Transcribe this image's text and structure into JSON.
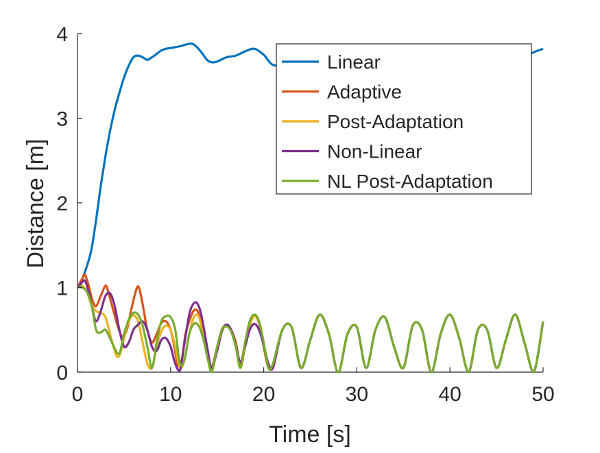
{
  "chart_data": {
    "type": "line",
    "title": "",
    "xlabel": "Time [s]",
    "ylabel": "Distance [m]",
    "xlim": [
      0,
      50
    ],
    "ylim": [
      0,
      4
    ],
    "xticks": [
      0,
      10,
      20,
      30,
      40,
      50
    ],
    "yticks": [
      0,
      1,
      2,
      3,
      4
    ],
    "x_tick_labels": [
      "0",
      "10",
      "20",
      "30",
      "40",
      "50"
    ],
    "y_tick_labels": [
      "0",
      "1",
      "2",
      "3",
      "4"
    ],
    "grid": false,
    "legend_position": "top-right",
    "series": [
      {
        "name": "Linear",
        "color": "#0072BD",
        "x": [
          0,
          0.5,
          1,
          1.5,
          2,
          2.5,
          3,
          3.5,
          4,
          4.5,
          5,
          5.5,
          6,
          6.5,
          7,
          7.5,
          8,
          8.5,
          9,
          9.5,
          10,
          11,
          12,
          12.5,
          13,
          13.5,
          14,
          14.5,
          15,
          16,
          17,
          18,
          19,
          20,
          20.5,
          21,
          22,
          23,
          24,
          25,
          26,
          27,
          28,
          29,
          30,
          31,
          32,
          33,
          34,
          35,
          36,
          37,
          38,
          39,
          40,
          41,
          42,
          43,
          44,
          45,
          46,
          47,
          48,
          49,
          50
        ],
        "y": [
          1.0,
          1.1,
          1.25,
          1.45,
          1.8,
          2.2,
          2.55,
          2.85,
          3.1,
          3.3,
          3.48,
          3.62,
          3.72,
          3.74,
          3.72,
          3.69,
          3.72,
          3.76,
          3.8,
          3.82,
          3.83,
          3.85,
          3.88,
          3.87,
          3.82,
          3.75,
          3.68,
          3.66,
          3.67,
          3.72,
          3.74,
          3.79,
          3.82,
          3.75,
          3.68,
          3.63,
          3.62,
          3.65,
          3.7,
          3.73,
          3.71,
          3.68,
          3.7,
          3.74,
          3.76,
          3.73,
          3.7,
          3.72,
          3.75,
          3.77,
          3.74,
          3.71,
          3.73,
          3.76,
          3.78,
          3.75,
          3.72,
          3.74,
          3.78,
          3.8,
          3.77,
          3.74,
          3.72,
          3.78,
          3.82
        ]
      },
      {
        "name": "Adaptive",
        "color": "#D95319",
        "x": [
          0,
          0.5,
          0.8,
          1.2,
          1.6,
          2,
          2.5,
          3,
          3.3,
          3.8,
          4.3,
          4.8,
          5.3,
          5.8,
          6.3,
          6.6,
          7,
          7.5,
          8,
          8.5,
          9,
          9.5,
          10,
          10.4,
          10.8,
          11.2,
          11.6,
          12,
          12.5,
          13,
          13.5,
          14,
          14.4,
          15,
          15.5,
          16,
          16.5,
          17,
          17.5,
          18,
          18.5,
          19,
          19.5,
          20,
          20.5,
          21
        ],
        "y": [
          1.0,
          1.1,
          1.15,
          1.02,
          0.85,
          0.78,
          0.9,
          1.02,
          0.95,
          0.75,
          0.55,
          0.42,
          0.5,
          0.75,
          0.97,
          1.0,
          0.8,
          0.5,
          0.35,
          0.45,
          0.58,
          0.6,
          0.5,
          0.3,
          0.08,
          0.15,
          0.45,
          0.6,
          0.73,
          0.7,
          0.45,
          0.2,
          0.05,
          0.3,
          0.5,
          0.56,
          0.5,
          0.35,
          0.1,
          0.35,
          0.6,
          0.67,
          0.58,
          0.3,
          0.05,
          0.1
        ]
      },
      {
        "name": "Post-Adaptation",
        "color": "#EDB120",
        "x": [
          0,
          0.5,
          1,
          1.5,
          2,
          2.5,
          3,
          3.5,
          4,
          4.3,
          4.6,
          5,
          5.5,
          6,
          6.5,
          7,
          7.5,
          8,
          8.5,
          9,
          9.5,
          10,
          10.5,
          11,
          11.5,
          12,
          12.5,
          13,
          13.5,
          14,
          14.4,
          15,
          15.5,
          16,
          16.5,
          17,
          17.5,
          18,
          18.5,
          19,
          19.5,
          20,
          20.5,
          21
        ],
        "y": [
          1.0,
          1.02,
          0.95,
          0.8,
          0.72,
          0.7,
          0.65,
          0.45,
          0.25,
          0.18,
          0.22,
          0.4,
          0.6,
          0.67,
          0.6,
          0.35,
          0.1,
          0.05,
          0.3,
          0.48,
          0.55,
          0.5,
          0.3,
          0.05,
          0.15,
          0.45,
          0.65,
          0.66,
          0.45,
          0.18,
          0.0,
          0.28,
          0.48,
          0.55,
          0.48,
          0.3,
          0.05,
          0.3,
          0.55,
          0.66,
          0.6,
          0.35,
          0.05,
          0.1
        ]
      },
      {
        "name": "Non-Linear",
        "color": "#7E2F8E",
        "x": [
          0,
          0.4,
          0.8,
          1.2,
          1.6,
          2,
          2.5,
          3,
          3.5,
          4,
          4.5,
          5,
          5.5,
          6,
          6.4,
          7,
          7.5,
          8,
          8.5,
          9,
          9.5,
          10,
          10.5,
          11,
          11.5,
          12,
          12.4,
          12.8,
          13.2,
          13.6,
          14,
          14.4,
          15,
          15.5,
          16,
          16.5,
          17,
          17.5,
          18,
          18.5,
          19,
          19.5,
          20,
          20.5,
          21
        ],
        "y": [
          1.0,
          1.05,
          1.08,
          0.95,
          0.75,
          0.6,
          0.72,
          0.9,
          0.93,
          0.78,
          0.5,
          0.3,
          0.35,
          0.5,
          0.55,
          0.6,
          0.5,
          0.3,
          0.25,
          0.38,
          0.4,
          0.3,
          0.1,
          0.02,
          0.35,
          0.68,
          0.8,
          0.82,
          0.72,
          0.5,
          0.25,
          0.05,
          0.25,
          0.48,
          0.56,
          0.5,
          0.32,
          0.12,
          0.3,
          0.5,
          0.57,
          0.5,
          0.32,
          0.1,
          0.05
        ]
      },
      {
        "name": "NL Post-Adaptation",
        "color": "#77AC30",
        "x": [
          0,
          0.5,
          1,
          1.5,
          2,
          2.5,
          3,
          3.5,
          4,
          4.5,
          5,
          5.5,
          6,
          6.5,
          7,
          7.5,
          8,
          8.5,
          9,
          9.5,
          10,
          10.5,
          11,
          11.5,
          12,
          12.5,
          13,
          13.5,
          14,
          14.4,
          15,
          15.5,
          16,
          16.5,
          17,
          17.5,
          18,
          18.5,
          19,
          19.5,
          20,
          20.5,
          21
        ],
        "y": [
          1.0,
          1.0,
          0.95,
          0.8,
          0.5,
          0.47,
          0.5,
          0.4,
          0.28,
          0.22,
          0.45,
          0.62,
          0.7,
          0.68,
          0.55,
          0.3,
          0.05,
          0.35,
          0.6,
          0.66,
          0.65,
          0.5,
          0.1,
          0.15,
          0.45,
          0.57,
          0.55,
          0.4,
          0.15,
          0.0,
          0.3,
          0.5,
          0.54,
          0.48,
          0.3,
          0.05,
          0.35,
          0.6,
          0.68,
          0.6,
          0.35,
          0.05,
          0.1
        ]
      }
    ],
    "common_tail": {
      "x": [
        21,
        22,
        23,
        24,
        25,
        26,
        27,
        28,
        29,
        30,
        31,
        32,
        33,
        34,
        35,
        36,
        37,
        38,
        39,
        40,
        41,
        42,
        43,
        44,
        45,
        46,
        47,
        48,
        49,
        50
      ],
      "y": [
        0.05,
        0.5,
        0.53,
        0.05,
        0.38,
        0.68,
        0.45,
        0.0,
        0.45,
        0.53,
        0.05,
        0.5,
        0.65,
        0.3,
        0.05,
        0.55,
        0.5,
        0.0,
        0.45,
        0.68,
        0.4,
        0.0,
        0.5,
        0.5,
        0.05,
        0.38,
        0.68,
        0.35,
        0.0,
        0.6
      ]
    }
  }
}
